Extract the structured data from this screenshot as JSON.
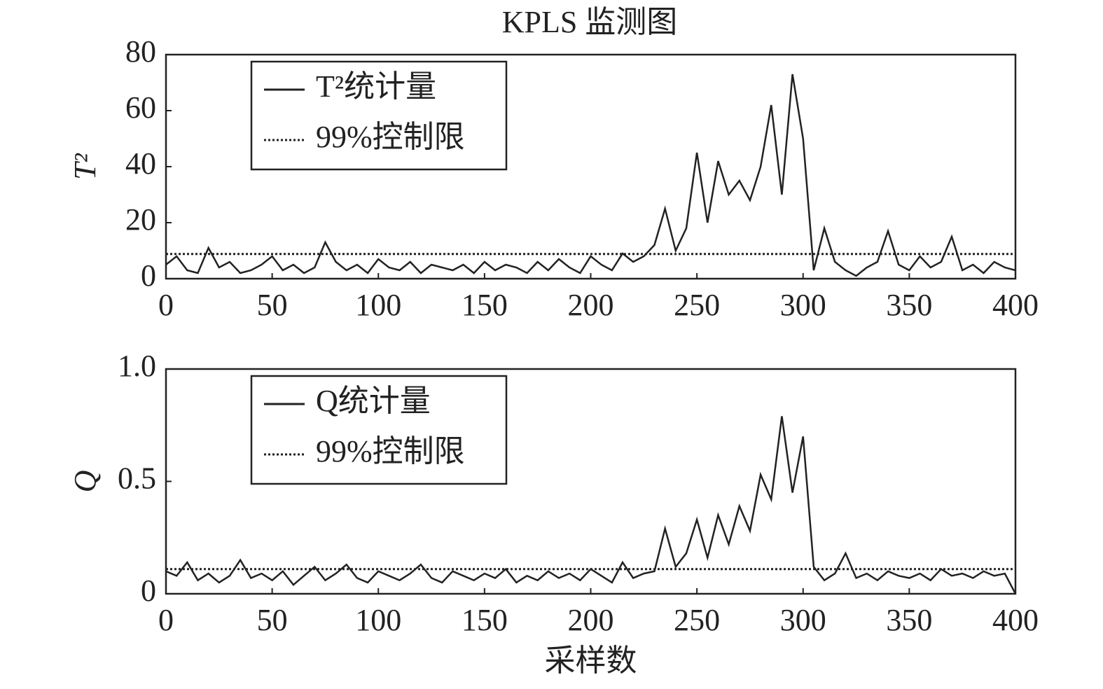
{
  "title": "KPLS 监测图",
  "chart_data": [
    {
      "type": "line",
      "ylabel": "T²",
      "legend": "upper left",
      "x": [
        0,
        5,
        10,
        15,
        20,
        25,
        30,
        35,
        40,
        45,
        50,
        55,
        60,
        65,
        70,
        75,
        80,
        85,
        90,
        95,
        100,
        105,
        110,
        115,
        120,
        125,
        130,
        135,
        140,
        145,
        150,
        155,
        160,
        165,
        170,
        175,
        180,
        185,
        190,
        195,
        200,
        205,
        210,
        215,
        220,
        225,
        230,
        235,
        240,
        245,
        250,
        255,
        260,
        265,
        270,
        275,
        280,
        285,
        290,
        295,
        300,
        305,
        310,
        315,
        320,
        325,
        330,
        335,
        340,
        345,
        350,
        355,
        360,
        365,
        370,
        375,
        380,
        385,
        390,
        395,
        400
      ],
      "series": [
        {
          "name": "T²统计量",
          "color": "#222222",
          "dash": "solid",
          "values": [
            5,
            8,
            3,
            2,
            11,
            4,
            6,
            2,
            3,
            5,
            8,
            3,
            5,
            2,
            4,
            13,
            6,
            3,
            5,
            2,
            7,
            4,
            3,
            6,
            2,
            5,
            4,
            3,
            5,
            2,
            6,
            3,
            5,
            4,
            2,
            6,
            3,
            7,
            4,
            2,
            8,
            5,
            3,
            9,
            6,
            8,
            12,
            25,
            10,
            18,
            45,
            20,
            42,
            30,
            35,
            28,
            40,
            62,
            30,
            73,
            50,
            3,
            18,
            6,
            3,
            1,
            4,
            6,
            17,
            5,
            3,
            8,
            4,
            6,
            15,
            3,
            5,
            2,
            6,
            4,
            3
          ]
        },
        {
          "name": "99%控制限",
          "color": "#222222",
          "dash": "dotted",
          "x": [
            0,
            400
          ],
          "values": [
            8.8,
            8.8
          ]
        }
      ],
      "xlim": [
        0,
        400
      ],
      "xticks": [
        0,
        50,
        100,
        150,
        200,
        250,
        300,
        350,
        400
      ],
      "ylim": [
        0,
        80
      ],
      "yticks": [
        0,
        20,
        40,
        60,
        80
      ]
    },
    {
      "type": "line",
      "ylabel": "Q",
      "xlabel": "采样数",
      "legend": "upper left",
      "x": [
        0,
        5,
        10,
        15,
        20,
        25,
        30,
        35,
        40,
        45,
        50,
        55,
        60,
        65,
        70,
        75,
        80,
        85,
        90,
        95,
        100,
        105,
        110,
        115,
        120,
        125,
        130,
        135,
        140,
        145,
        150,
        155,
        160,
        165,
        170,
        175,
        180,
        185,
        190,
        195,
        200,
        205,
        210,
        215,
        220,
        225,
        230,
        235,
        240,
        245,
        250,
        255,
        260,
        265,
        270,
        275,
        280,
        285,
        290,
        295,
        300,
        305,
        310,
        315,
        320,
        325,
        330,
        335,
        340,
        345,
        350,
        355,
        360,
        365,
        370,
        375,
        380,
        385,
        390,
        395,
        400
      ],
      "series": [
        {
          "name": "Q统计量",
          "color": "#222222",
          "dash": "solid",
          "values": [
            0.1,
            0.08,
            0.14,
            0.06,
            0.09,
            0.05,
            0.08,
            0.15,
            0.07,
            0.09,
            0.06,
            0.1,
            0.04,
            0.08,
            0.12,
            0.06,
            0.09,
            0.13,
            0.07,
            0.05,
            0.1,
            0.08,
            0.06,
            0.09,
            0.13,
            0.07,
            0.05,
            0.1,
            0.08,
            0.06,
            0.09,
            0.07,
            0.11,
            0.05,
            0.08,
            0.06,
            0.1,
            0.07,
            0.09,
            0.06,
            0.11,
            0.08,
            0.05,
            0.14,
            0.07,
            0.09,
            0.1,
            0.29,
            0.12,
            0.18,
            0.33,
            0.16,
            0.35,
            0.22,
            0.39,
            0.28,
            0.53,
            0.42,
            0.79,
            0.45,
            0.7,
            0.12,
            0.06,
            0.09,
            0.18,
            0.07,
            0.09,
            0.06,
            0.1,
            0.08,
            0.07,
            0.09,
            0.06,
            0.11,
            0.08,
            0.09,
            0.07,
            0.1,
            0.08,
            0.09,
            0.0
          ]
        },
        {
          "name": "99%控制限",
          "color": "#222222",
          "dash": "dotted",
          "x": [
            0,
            400
          ],
          "values": [
            0.11,
            0.11
          ]
        }
      ],
      "xlim": [
        0,
        400
      ],
      "xticks": [
        0,
        50,
        100,
        150,
        200,
        250,
        300,
        350,
        400
      ],
      "ylim": [
        0,
        1
      ],
      "yticks": [
        0,
        0.5,
        {
          "value": 1,
          "label": "1.0"
        }
      ]
    }
  ]
}
